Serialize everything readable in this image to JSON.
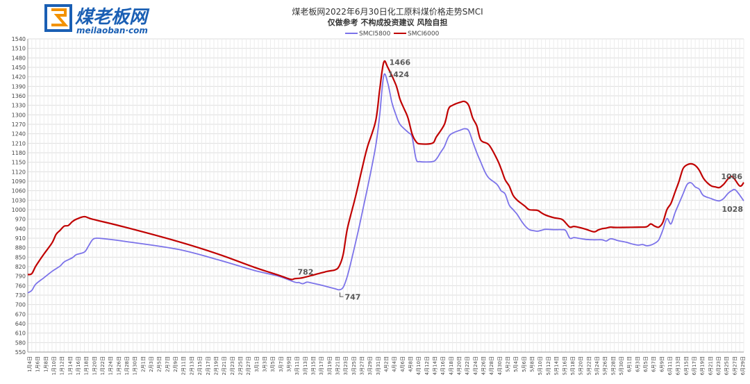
{
  "logo": {
    "name_cn": "煤老板网",
    "name_en": "meilaoban·com",
    "accent": "#1a5fb4",
    "accent2": "#f39200"
  },
  "chart_data": {
    "type": "line",
    "title": "煤老板网2022年6月30日化工原料煤价格走势SMCI",
    "subtitle": "仅做参考 不构成投资建议 风险自担",
    "legend_position": "top-center",
    "grid": true,
    "ylim": [
      550,
      1540
    ],
    "ytick_step": 30,
    "x_range": [
      "2022-01-04",
      "2022-06-30"
    ],
    "xtick_labels": [
      "1月4日",
      "1月6日",
      "1月8日",
      "1月10日",
      "1月12日",
      "1月14日",
      "1月16日",
      "1月18日",
      "1月20日",
      "1月22日",
      "1月24日",
      "1月26日",
      "1月28日",
      "1月30日",
      "2月1日",
      "2月3日",
      "2月5日",
      "2月7日",
      "2月9日",
      "2月11日",
      "2月13日",
      "2月15日",
      "2月17日",
      "2月19日",
      "2月21日",
      "2月23日",
      "2月25日",
      "2月27日",
      "3月1日",
      "3月3日",
      "3月5日",
      "3月7日",
      "3月9日",
      "3月11日",
      "3月13日",
      "3月15日",
      "3月17日",
      "3月19日",
      "3月21日",
      "3月23日",
      "3月25日",
      "3月27日",
      "3月29日",
      "3月31日",
      "4月2日",
      "4月4日",
      "4月6日",
      "4月8日",
      "4月10日",
      "4月12日",
      "4月14日",
      "4月16日",
      "4月18日",
      "4月20日",
      "4月22日",
      "4月24日",
      "4月26日",
      "4月28日",
      "4月30日",
      "5月2日",
      "5月4日",
      "5月6日",
      "5月8日",
      "5月10日",
      "5月12日",
      "5月14日",
      "5月16日",
      "5月18日",
      "5月20日",
      "5月22日",
      "5月24日",
      "5月26日",
      "5月28日",
      "5月30日",
      "6月1日",
      "6月3日",
      "6月5日",
      "6月7日",
      "6月9日",
      "6月11日",
      "6月13日",
      "6月15日",
      "6月17日",
      "6月19日",
      "6月21日",
      "6月23日",
      "6月25日",
      "6月27日",
      "6月29日"
    ],
    "series": [
      {
        "name": "SMCI5800",
        "color": "#7b72e9",
        "points": [
          [
            "2022-01-04",
            737
          ],
          [
            "2022-01-05",
            745
          ],
          [
            "2022-01-06",
            765
          ],
          [
            "2022-01-08",
            785
          ],
          [
            "2022-01-10",
            805
          ],
          [
            "2022-01-12",
            822
          ],
          [
            "2022-01-13",
            835
          ],
          [
            "2022-01-15",
            848
          ],
          [
            "2022-01-16",
            858
          ],
          [
            "2022-01-18",
            866
          ],
          [
            "2022-01-19",
            885
          ],
          [
            "2022-01-20",
            905
          ],
          [
            "2022-01-21",
            910
          ],
          [
            "2022-01-23",
            908
          ],
          [
            "2022-01-28",
            900
          ],
          [
            "2022-02-10",
            875
          ],
          [
            "2022-02-20",
            842
          ],
          [
            "2022-03-01",
            808
          ],
          [
            "2022-03-07",
            790
          ],
          [
            "2022-03-11",
            771
          ],
          [
            "2022-03-12",
            770
          ],
          [
            "2022-03-13",
            766
          ],
          [
            "2022-03-14",
            771
          ],
          [
            "2022-03-15",
            769
          ],
          [
            "2022-03-18",
            760
          ],
          [
            "2022-03-21",
            750
          ],
          [
            "2022-03-22",
            747
          ],
          [
            "2022-03-23",
            755
          ],
          [
            "2022-03-24",
            790
          ],
          [
            "2022-03-25",
            840
          ],
          [
            "2022-03-27",
            950
          ],
          [
            "2022-03-29",
            1070
          ],
          [
            "2022-03-31",
            1200
          ],
          [
            "2022-04-01",
            1300
          ],
          [
            "2022-04-02",
            1424
          ],
          [
            "2022-04-03",
            1400
          ],
          [
            "2022-04-04",
            1340
          ],
          [
            "2022-04-05",
            1300
          ],
          [
            "2022-04-06",
            1270
          ],
          [
            "2022-04-08",
            1245
          ],
          [
            "2022-04-09",
            1230
          ],
          [
            "2022-04-10",
            1160
          ],
          [
            "2022-04-11",
            1152
          ],
          [
            "2022-04-14",
            1152
          ],
          [
            "2022-04-15",
            1160
          ],
          [
            "2022-04-16",
            1180
          ],
          [
            "2022-04-17",
            1200
          ],
          [
            "2022-04-18",
            1230
          ],
          [
            "2022-04-19",
            1242
          ],
          [
            "2022-04-21",
            1252
          ],
          [
            "2022-04-22",
            1256
          ],
          [
            "2022-04-23",
            1250
          ],
          [
            "2022-04-24",
            1215
          ],
          [
            "2022-04-25",
            1180
          ],
          [
            "2022-04-26",
            1150
          ],
          [
            "2022-04-27",
            1120
          ],
          [
            "2022-04-28",
            1100
          ],
          [
            "2022-04-30",
            1080
          ],
          [
            "2022-05-01",
            1060
          ],
          [
            "2022-05-02",
            1050
          ],
          [
            "2022-05-03",
            1015
          ],
          [
            "2022-05-04",
            1000
          ],
          [
            "2022-05-05",
            985
          ],
          [
            "2022-05-06",
            965
          ],
          [
            "2022-05-07",
            948
          ],
          [
            "2022-05-08",
            937
          ],
          [
            "2022-05-09",
            934
          ],
          [
            "2022-05-10",
            932
          ],
          [
            "2022-05-11",
            935
          ],
          [
            "2022-05-12",
            938
          ],
          [
            "2022-05-14",
            937
          ],
          [
            "2022-05-16",
            937
          ],
          [
            "2022-05-17",
            934
          ],
          [
            "2022-05-18",
            910
          ],
          [
            "2022-05-19",
            912
          ],
          [
            "2022-05-20",
            910
          ],
          [
            "2022-05-22",
            906
          ],
          [
            "2022-05-24",
            905
          ],
          [
            "2022-05-26",
            905
          ],
          [
            "2022-05-27",
            901
          ],
          [
            "2022-05-28",
            908
          ],
          [
            "2022-05-29",
            906
          ],
          [
            "2022-05-30",
            902
          ],
          [
            "2022-06-01",
            897
          ],
          [
            "2022-06-02",
            893
          ],
          [
            "2022-06-03",
            890
          ],
          [
            "2022-06-04",
            888
          ],
          [
            "2022-06-05",
            890
          ],
          [
            "2022-06-06",
            886
          ],
          [
            "2022-06-07",
            888
          ],
          [
            "2022-06-08",
            894
          ],
          [
            "2022-06-09",
            905
          ],
          [
            "2022-06-10",
            936
          ],
          [
            "2022-06-11",
            972
          ],
          [
            "2022-06-12",
            955
          ],
          [
            "2022-06-13",
            990
          ],
          [
            "2022-06-14",
            1020
          ],
          [
            "2022-06-15",
            1050
          ],
          [
            "2022-06-16",
            1080
          ],
          [
            "2022-06-17",
            1085
          ],
          [
            "2022-06-18",
            1072
          ],
          [
            "2022-06-19",
            1065
          ],
          [
            "2022-06-20",
            1045
          ],
          [
            "2022-06-22",
            1035
          ],
          [
            "2022-06-23",
            1030
          ],
          [
            "2022-06-24",
            1028
          ],
          [
            "2022-06-25",
            1035
          ],
          [
            "2022-06-26",
            1050
          ],
          [
            "2022-06-27",
            1060
          ],
          [
            "2022-06-28",
            1062
          ],
          [
            "2022-06-30",
            1028
          ]
        ]
      },
      {
        "name": "SMCI6000",
        "color": "#c00000",
        "points": [
          [
            "2022-01-04",
            795
          ],
          [
            "2022-01-05",
            798
          ],
          [
            "2022-01-06",
            822
          ],
          [
            "2022-01-08",
            860
          ],
          [
            "2022-01-10",
            895
          ],
          [
            "2022-01-11",
            922
          ],
          [
            "2022-01-12",
            935
          ],
          [
            "2022-01-13",
            948
          ],
          [
            "2022-01-14",
            950
          ],
          [
            "2022-01-15",
            962
          ],
          [
            "2022-01-16",
            970
          ],
          [
            "2022-01-18",
            978
          ],
          [
            "2022-01-20",
            970
          ],
          [
            "2022-01-28",
            945
          ],
          [
            "2022-02-10",
            900
          ],
          [
            "2022-02-20",
            860
          ],
          [
            "2022-03-01",
            818
          ],
          [
            "2022-03-07",
            793
          ],
          [
            "2022-03-10",
            780
          ],
          [
            "2022-03-11",
            782
          ],
          [
            "2022-03-13",
            785
          ],
          [
            "2022-03-16",
            795
          ],
          [
            "2022-03-19",
            805
          ],
          [
            "2022-03-21",
            810
          ],
          [
            "2022-03-22",
            822
          ],
          [
            "2022-03-23",
            860
          ],
          [
            "2022-03-24",
            940
          ],
          [
            "2022-03-26",
            1040
          ],
          [
            "2022-03-28",
            1150
          ],
          [
            "2022-03-29",
            1200
          ],
          [
            "2022-03-31",
            1280
          ],
          [
            "2022-04-01",
            1380
          ],
          [
            "2022-04-02",
            1466
          ],
          [
            "2022-04-03",
            1450
          ],
          [
            "2022-04-05",
            1395
          ],
          [
            "2022-04-06",
            1350
          ],
          [
            "2022-04-07",
            1320
          ],
          [
            "2022-04-08",
            1290
          ],
          [
            "2022-04-09",
            1240
          ],
          [
            "2022-04-10",
            1215
          ],
          [
            "2022-04-11",
            1208
          ],
          [
            "2022-04-14",
            1210
          ],
          [
            "2022-04-15",
            1230
          ],
          [
            "2022-04-17",
            1270
          ],
          [
            "2022-04-18",
            1318
          ],
          [
            "2022-04-19",
            1330
          ],
          [
            "2022-04-21",
            1340
          ],
          [
            "2022-04-22",
            1342
          ],
          [
            "2022-04-23",
            1330
          ],
          [
            "2022-04-24",
            1290
          ],
          [
            "2022-04-25",
            1265
          ],
          [
            "2022-04-26",
            1220
          ],
          [
            "2022-04-28",
            1205
          ],
          [
            "2022-04-30",
            1160
          ],
          [
            "2022-05-01",
            1130
          ],
          [
            "2022-05-02",
            1095
          ],
          [
            "2022-05-03",
            1075
          ],
          [
            "2022-05-04",
            1045
          ],
          [
            "2022-05-05",
            1030
          ],
          [
            "2022-05-06",
            1020
          ],
          [
            "2022-05-07",
            1010
          ],
          [
            "2022-05-08",
            1000
          ],
          [
            "2022-05-10",
            998
          ],
          [
            "2022-05-11",
            990
          ],
          [
            "2022-05-12",
            983
          ],
          [
            "2022-05-14",
            975
          ],
          [
            "2022-05-16",
            970
          ],
          [
            "2022-05-17",
            958
          ],
          [
            "2022-05-18",
            945
          ],
          [
            "2022-05-19",
            947
          ],
          [
            "2022-05-20",
            945
          ],
          [
            "2022-05-22",
            938
          ],
          [
            "2022-05-24",
            930
          ],
          [
            "2022-05-25",
            936
          ],
          [
            "2022-05-26",
            940
          ],
          [
            "2022-05-27",
            942
          ],
          [
            "2022-05-28",
            945
          ],
          [
            "2022-05-29",
            944
          ],
          [
            "2022-05-31",
            944
          ],
          [
            "2022-06-04",
            945
          ],
          [
            "2022-06-06",
            946
          ],
          [
            "2022-06-07",
            955
          ],
          [
            "2022-06-08",
            948
          ],
          [
            "2022-06-09",
            945
          ],
          [
            "2022-06-10",
            960
          ],
          [
            "2022-06-11",
            1000
          ],
          [
            "2022-06-12",
            1020
          ],
          [
            "2022-06-13",
            1055
          ],
          [
            "2022-06-14",
            1090
          ],
          [
            "2022-06-15",
            1130
          ],
          [
            "2022-06-16",
            1142
          ],
          [
            "2022-06-17",
            1145
          ],
          [
            "2022-06-18",
            1140
          ],
          [
            "2022-06-19",
            1125
          ],
          [
            "2022-06-20",
            1100
          ],
          [
            "2022-06-21",
            1085
          ],
          [
            "2022-06-22",
            1075
          ],
          [
            "2022-06-23",
            1072
          ],
          [
            "2022-06-24",
            1070
          ],
          [
            "2022-06-25",
            1080
          ],
          [
            "2022-06-27",
            1105
          ],
          [
            "2022-06-29",
            1075
          ],
          [
            "2022-06-30",
            1086
          ]
        ]
      }
    ],
    "annotations": [
      {
        "text": "1466",
        "series": "SMCI6000",
        "x": "2022-04-02",
        "y": 1466
      },
      {
        "text": "1424",
        "series": "SMCI5800",
        "x": "2022-04-02",
        "y": 1424
      },
      {
        "text": "782",
        "series": "SMCI6000",
        "x": "2022-03-11",
        "y": 782
      },
      {
        "text": "747",
        "series": "SMCI5800",
        "x": "2022-03-22",
        "y": 747
      },
      {
        "text": "1086",
        "series": "SMCI6000",
        "x": "2022-06-30",
        "y": 1086
      },
      {
        "text": "1028",
        "series": "SMCI5800",
        "x": "2022-06-30",
        "y": 1028
      }
    ]
  }
}
